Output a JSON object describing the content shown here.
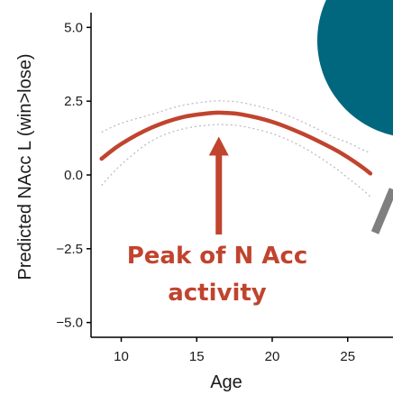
{
  "chart_data": {
    "type": "line",
    "xlabel": "Age",
    "ylabel": "Predicted NAcc L (win>lose)",
    "xlim": [
      8,
      28
    ],
    "ylim": [
      -5.5,
      5.5
    ],
    "x_ticks": [
      10,
      15,
      20,
      25
    ],
    "y_ticks": [
      5.0,
      2.5,
      0.0,
      -2.5,
      -5.0
    ],
    "y_tick_labels": [
      "5.0",
      "2.5",
      "0.0",
      "−2.5",
      "−5.0"
    ],
    "grid": false,
    "series": [
      {
        "x": [
          8.7,
          10,
          12,
          14,
          16,
          17,
          18,
          20,
          22,
          24,
          25,
          26,
          26.5
        ],
        "y": [
          0.55,
          1.05,
          1.6,
          1.95,
          2.1,
          2.1,
          2.05,
          1.8,
          1.4,
          0.9,
          0.6,
          0.25,
          0.05
        ],
        "ci_upper": [
          1.45,
          1.75,
          2.05,
          2.35,
          2.5,
          2.5,
          2.45,
          2.2,
          1.8,
          1.3,
          1.1,
          0.85,
          0.75
        ],
        "ci_lower": [
          -0.35,
          0.35,
          1.15,
          1.55,
          1.7,
          1.7,
          1.65,
          1.4,
          0.95,
          0.3,
          -0.1,
          -0.5,
          -0.75
        ]
      }
    ],
    "annotations": [
      {
        "text": "Peak of N Acc",
        "text2": "activity",
        "arrow_to": [
          17,
          1.3
        ]
      }
    ],
    "colors": {
      "line": "#c0442e",
      "ci": "#b8b8c4",
      "annotation": "#c0442e",
      "circle": "#01677f",
      "slash": "#7f7f7f",
      "axis": "#000000"
    }
  }
}
